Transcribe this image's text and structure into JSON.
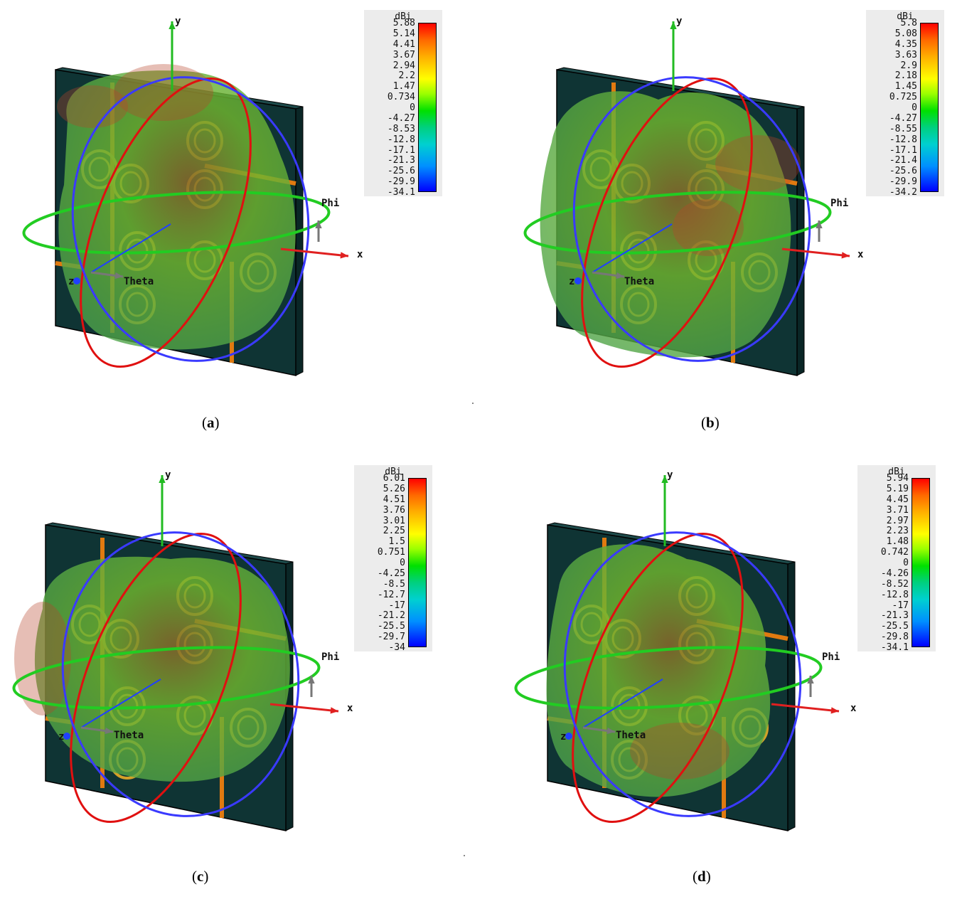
{
  "panels": [
    {
      "id": "a",
      "caption_letter": "a",
      "legend": {
        "unit": "dBi",
        "ticks": [
          "5.88",
          "5.14",
          "4.41",
          "3.67",
          "2.94",
          "2.2",
          "1.47",
          "0.734",
          "0",
          "-4.27",
          "-8.53",
          "-12.8",
          "-17.1",
          "-21.3",
          "-25.6",
          "-29.9",
          "-34.1"
        ]
      },
      "axes": {
        "x": "x",
        "y": "y",
        "z": "z",
        "phi": "Phi",
        "theta": "Theta"
      }
    },
    {
      "id": "b",
      "caption_letter": "b",
      "legend": {
        "unit": "dBi",
        "ticks": [
          "5.8",
          "5.08",
          "4.35",
          "3.63",
          "2.9",
          "2.18",
          "1.45",
          "0.725",
          "0",
          "-4.27",
          "-8.55",
          "-12.8",
          "-17.1",
          "-21.4",
          "-25.6",
          "-29.9",
          "-34.2"
        ]
      },
      "axes": {
        "x": "x",
        "y": "y",
        "z": "z",
        "phi": "Phi",
        "theta": "Theta"
      }
    },
    {
      "id": "c",
      "caption_letter": "c",
      "legend": {
        "unit": "dBi",
        "ticks": [
          "6.01",
          "5.26",
          "4.51",
          "3.76",
          "3.01",
          "2.25",
          "1.5",
          "0.751",
          "0",
          "-4.25",
          "-8.5",
          "-12.7",
          "-17",
          "-21.2",
          "-25.5",
          "-29.7",
          "-34"
        ]
      },
      "axes": {
        "x": "x",
        "y": "y",
        "z": "z",
        "phi": "Phi",
        "theta": "Theta"
      }
    },
    {
      "id": "d",
      "caption_letter": "d",
      "legend": {
        "unit": "dBi",
        "ticks": [
          "5.94",
          "5.19",
          "4.45",
          "3.71",
          "2.97",
          "2.23",
          "1.48",
          "0.742",
          "0",
          "-4.26",
          "-8.52",
          "-12.8",
          "-17",
          "-21.3",
          "-25.5",
          "-29.8",
          "-34.1"
        ]
      },
      "axes": {
        "x": "x",
        "y": "y",
        "z": "z",
        "phi": "Phi",
        "theta": "Theta"
      }
    }
  ],
  "colors": {
    "board": "#0f3434",
    "feedline": "#e07a10",
    "ring": "#d4a028",
    "pattern_green": "#6fb52e",
    "pattern_red": "#b8462a",
    "x_axis": "#e02020",
    "y_axis": "#10c010",
    "z_axis": "#2040ff",
    "phi_ring": "#22cc22",
    "theta_ring": "#e01010",
    "blue_ring": "#3a3aff"
  }
}
